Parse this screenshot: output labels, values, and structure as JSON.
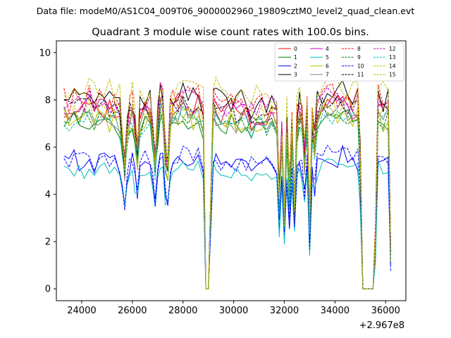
{
  "chart_data": {
    "type": "line",
    "suptitle": "Data file: modeM0/AS1C04_009T06_9000002960_19809cztM0_level2_quad_clean.evt",
    "title": "Quadrant 3 module wise count rates with 100.0s bins.",
    "xlabel": "",
    "ylabel": "",
    "x_offset_label": "+2.967e8",
    "xlim": [
      23000,
      36800
    ],
    "ylim": [
      -0.5,
      10.5
    ],
    "x_ticks": [
      24000,
      26000,
      28000,
      30000,
      32000,
      34000,
      36000
    ],
    "x_tick_labels": [
      "24000",
      "26000",
      "28000",
      "30000",
      "32000",
      "34000",
      "36000"
    ],
    "y_ticks": [
      0,
      2,
      4,
      6,
      8,
      10
    ],
    "y_tick_labels": [
      "0",
      "2",
      "4",
      "6",
      "8",
      "10"
    ],
    "legend_position": "top-right",
    "grid": false,
    "profile": {
      "x": [
        23300,
        23500,
        23700,
        23900,
        24100,
        24300,
        24500,
        24700,
        24900,
        25100,
        25300,
        25500,
        25600,
        25700,
        25800,
        25900,
        26000,
        26100,
        26200,
        26300,
        26500,
        26700,
        26800,
        26900,
        27000,
        27100,
        27200,
        27300,
        27400,
        27500,
        27600,
        27800,
        28000,
        28200,
        28400,
        28600,
        28800,
        28900,
        29000,
        29200,
        29300,
        29500,
        29700,
        29900,
        30100,
        30300,
        30500,
        30700,
        30900,
        31100,
        31300,
        31500,
        31700,
        31800,
        31900,
        32000,
        32100,
        32200,
        32300,
        32400,
        32500,
        32600,
        32700,
        32800,
        32900,
        33000,
        33100,
        33200,
        33300,
        33500,
        33700,
        33900,
        34100,
        34300,
        34500,
        34700,
        34900,
        35000,
        35100,
        35300,
        35500,
        35600,
        35700,
        35900,
        36100,
        36200
      ],
      "v": [
        1.0,
        0.98,
        1.01,
        0.99,
        1.0,
        1.02,
        0.98,
        1.0,
        1.01,
        0.99,
        1.0,
        0.97,
        0.85,
        0.65,
        0.9,
        0.98,
        0.99,
        0.88,
        0.75,
        0.95,
        1.0,
        0.99,
        0.85,
        0.7,
        0.9,
        1.05,
        1.02,
        0.72,
        0.68,
        0.95,
        1.0,
        1.02,
        1.04,
        1.02,
        1.0,
        1.03,
        0.95,
        0.02,
        0.02,
        1.05,
        1.0,
        0.98,
        0.97,
        0.99,
        0.96,
        0.98,
        0.97,
        0.95,
        0.96,
        0.97,
        0.96,
        0.98,
        0.95,
        0.5,
        0.85,
        0.4,
        0.9,
        0.55,
        0.88,
        0.45,
        0.92,
        0.97,
        0.95,
        0.7,
        0.98,
        0.35,
        0.92,
        0.8,
        0.98,
        1.02,
        1.05,
        1.03,
        1.01,
        1.04,
        1.02,
        1.0,
        1.01,
        0.7,
        0.02,
        0.02,
        0.02,
        0.3,
        1.02,
        0.98,
        1.0,
        0.2
      ]
    },
    "series": [
      {
        "name": "0",
        "color": "#ff0000",
        "dash": false,
        "level": 7.6,
        "amp": 0.55,
        "seed": 1
      },
      {
        "name": "1",
        "color": "#008000",
        "dash": false,
        "level": 7.0,
        "amp": 0.45,
        "seed": 2
      },
      {
        "name": "2",
        "color": "#0000ff",
        "dash": false,
        "level": 5.4,
        "amp": 0.45,
        "seed": 3
      },
      {
        "name": "3",
        "color": "#000000",
        "dash": false,
        "level": 8.1,
        "amp": 0.5,
        "seed": 4
      },
      {
        "name": "4",
        "color": "#bf00bf",
        "dash": false,
        "level": 7.6,
        "amp": 0.45,
        "seed": 5
      },
      {
        "name": "5",
        "color": "#00bfbf",
        "dash": false,
        "level": 5.0,
        "amp": 0.35,
        "seed": 6
      },
      {
        "name": "6",
        "color": "#bfbf00",
        "dash": false,
        "level": 7.2,
        "amp": 0.5,
        "seed": 7
      },
      {
        "name": "7",
        "color": "#808080",
        "dash": false,
        "level": 7.3,
        "amp": 0.45,
        "seed": 8
      },
      {
        "name": "8",
        "color": "#ff0000",
        "dash": true,
        "level": 8.0,
        "amp": 0.5,
        "seed": 9
      },
      {
        "name": "9",
        "color": "#008000",
        "dash": true,
        "level": 7.2,
        "amp": 0.45,
        "seed": 10
      },
      {
        "name": "10",
        "color": "#0000ff",
        "dash": true,
        "level": 5.5,
        "amp": 0.4,
        "seed": 11
      },
      {
        "name": "11",
        "color": "#000000",
        "dash": true,
        "level": 7.7,
        "amp": 0.45,
        "seed": 12
      },
      {
        "name": "12",
        "color": "#bf00bf",
        "dash": true,
        "level": 7.9,
        "amp": 0.45,
        "seed": 13
      },
      {
        "name": "13",
        "color": "#00bfbf",
        "dash": true,
        "level": 7.1,
        "amp": 0.4,
        "seed": 14
      },
      {
        "name": "14",
        "color": "#bfbf00",
        "dash": true,
        "level": 8.4,
        "amp": 0.6,
        "seed": 15
      },
      {
        "name": "15",
        "color": "#bfbf00",
        "dash": true,
        "level": 7.5,
        "amp": 0.5,
        "seed": 16
      }
    ]
  }
}
